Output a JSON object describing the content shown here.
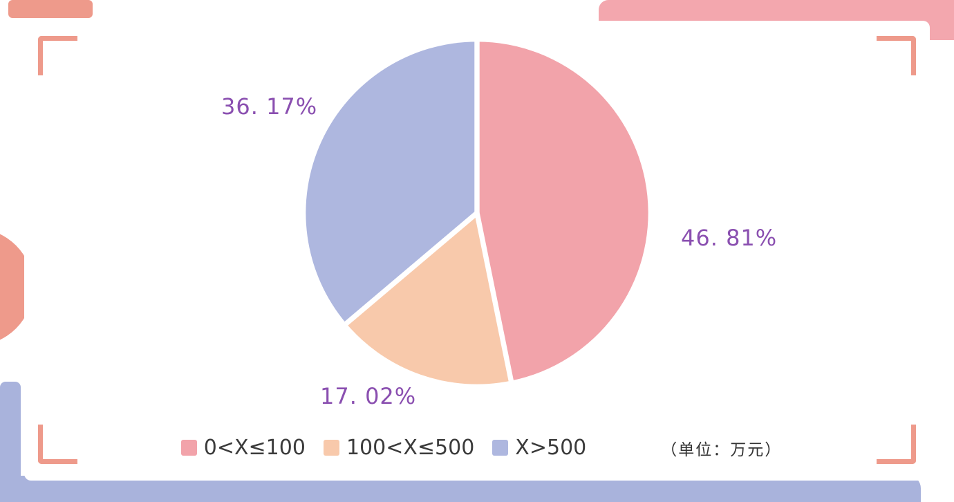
{
  "chart_data": {
    "type": "pie",
    "title": "",
    "unit_note": "（单位：万元）",
    "start_angle_deg": 0,
    "direction": "clockwise",
    "legend_position": "bottom",
    "label_color": "#8a4fb0",
    "slices": [
      {
        "label": "0<X≤100",
        "value": 46.81,
        "pct_label": "46. 81%",
        "color": "#f2a3aa"
      },
      {
        "label": "100<X≤500",
        "value": 17.02,
        "pct_label": "17. 02%",
        "color": "#f8c9ab"
      },
      {
        "label": "X>500",
        "value": 36.17,
        "pct_label": "36. 17%",
        "color": "#aeb7df"
      }
    ]
  },
  "decor": {
    "salmon": "#ee9a8b",
    "pink": "#f3a7ae",
    "lavender": "#a9b3dc",
    "card_background": "#ffffff"
  }
}
